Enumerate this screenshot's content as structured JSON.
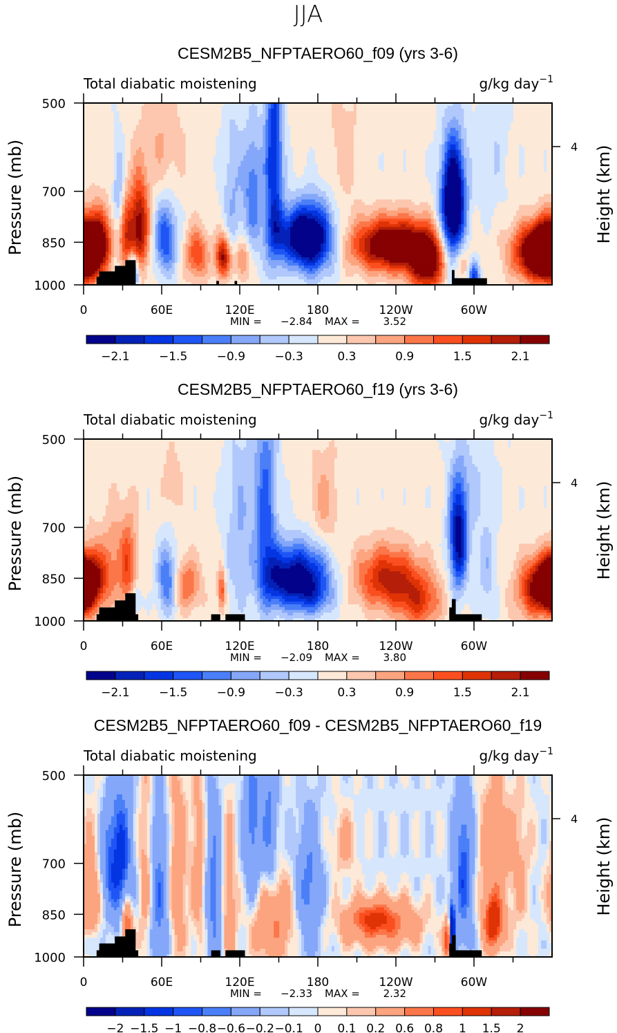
{
  "figure": {
    "main_title": "JJA"
  },
  "colormap": {
    "colors": [
      "#03028a",
      "#0422b8",
      "#0435e2",
      "#1f55f5",
      "#4a7ff8",
      "#85a7f9",
      "#b0c8fb",
      "#d6e7fd",
      "#fde9d7",
      "#fcc7ae",
      "#fca47f",
      "#fb7649",
      "#fb4f1f",
      "#df3306",
      "#b51e08",
      "#860102"
    ]
  },
  "chart_data": [
    {
      "type": "heatmap",
      "title": "CESM2B5_NFPTAERO60_f09 (yrs 3-6)",
      "left_string": "Total diabatic moistening",
      "right_string_base": "g/kg day",
      "right_string_exp": "−1",
      "ylabel": "Pressure (mb)",
      "ylabel_right": "Height (km)",
      "x_ticks": [
        "0",
        "60E",
        "120E",
        "180",
        "120W",
        "60W"
      ],
      "x_range": [
        0,
        360
      ],
      "y_ticks": [
        "500",
        "700",
        "850",
        "1000"
      ],
      "y_tick_values": [
        500,
        700,
        850,
        1000
      ],
      "y_range": [
        500,
        1000
      ],
      "y_right_ticks": [
        "4"
      ],
      "stats": {
        "min_label": "MIN =",
        "min": "−2.84",
        "max_label": "MAX =",
        "max": "3.52"
      },
      "contour_levels": [
        -2.1,
        -1.8,
        -1.5,
        -1.2,
        -0.9,
        -0.6,
        -0.3,
        0,
        0.3,
        0.6,
        0.9,
        1.2,
        1.5,
        1.8,
        2.1
      ],
      "colorbar_labels": [
        "−2.1",
        "−1.5",
        "−0.9",
        "−0.3",
        "0.3",
        "0.9",
        "1.5",
        "2.1"
      ],
      "colorbar_label_every": 2,
      "background_value": 0.1,
      "features": [
        {
          "lon": 0,
          "p": 880,
          "amp": 2.6,
          "wlon": 8,
          "wp": 70
        },
        {
          "lon": 12,
          "p": 840,
          "amp": 1.2,
          "wlon": 6,
          "wp": 80
        },
        {
          "lon": 24,
          "p": 900,
          "amp": -0.5,
          "wlon": 3,
          "wp": 40
        },
        {
          "lon": 27,
          "p": 700,
          "amp": -0.8,
          "wlon": 3,
          "wp": 90
        },
        {
          "lon": 33,
          "p": 830,
          "amp": 1.3,
          "wlon": 4,
          "wp": 90
        },
        {
          "lon": 38,
          "p": 950,
          "amp": -2.2,
          "wlon": 3,
          "wp": 45
        },
        {
          "lon": 43,
          "p": 800,
          "amp": 2.2,
          "wlon": 5,
          "wp": 100
        },
        {
          "lon": 63,
          "p": 840,
          "amp": -1.6,
          "wlon": 6,
          "wp": 80
        },
        {
          "lon": 60,
          "p": 580,
          "amp": 0.5,
          "wlon": 12,
          "wp": 80
        },
        {
          "lon": 87,
          "p": 890,
          "amp": 1.4,
          "wlon": 6,
          "wp": 60
        },
        {
          "lon": 107,
          "p": 900,
          "amp": 2.2,
          "wlon": 4,
          "wp": 50
        },
        {
          "lon": 122,
          "p": 910,
          "amp": 1.1,
          "wlon": 4,
          "wp": 50
        },
        {
          "lon": 115,
          "p": 700,
          "amp": -0.7,
          "wlon": 6,
          "wp": 150
        },
        {
          "lon": 130,
          "p": 700,
          "amp": -1.2,
          "wlon": 5,
          "wp": 120
        },
        {
          "lon": 146,
          "p": 630,
          "amp": -1.9,
          "wlon": 5,
          "wp": 200
        },
        {
          "lon": 176,
          "p": 840,
          "amp": -2.6,
          "wlon": 12,
          "wp": 80
        },
        {
          "lon": 160,
          "p": 830,
          "amp": -1.4,
          "wlon": 12,
          "wp": 60
        },
        {
          "lon": 200,
          "p": 600,
          "amp": 0.4,
          "wlon": 8,
          "wp": 100
        },
        {
          "lon": 238,
          "p": 860,
          "amp": 2.9,
          "wlon": 22,
          "wp": 60
        },
        {
          "lon": 265,
          "p": 930,
          "amp": 2.2,
          "wlon": 10,
          "wp": 70
        },
        {
          "lon": 285,
          "p": 725,
          "amp": -2.9,
          "wlon": 6,
          "wp": 110
        },
        {
          "lon": 280,
          "p": 800,
          "amp": -1.0,
          "wlon": 6,
          "wp": 150
        },
        {
          "lon": 300,
          "p": 970,
          "amp": -1.6,
          "wlon": 3,
          "wp": 40
        },
        {
          "lon": 290,
          "p": 920,
          "amp": 0.5,
          "wlon": 5,
          "wp": 40
        },
        {
          "lon": 312,
          "p": 600,
          "amp": -0.4,
          "wlon": 10,
          "wp": 120
        },
        {
          "lon": 355,
          "p": 870,
          "amp": 2.7,
          "wlon": 16,
          "wp": 60
        },
        {
          "lon": 345,
          "p": 920,
          "amp": 1.0,
          "wlon": 10,
          "wp": 60
        }
      ],
      "topography": [
        [
          10,
          970
        ],
        [
          12,
          970
        ],
        [
          12,
          950
        ],
        [
          24,
          950
        ],
        [
          24,
          930
        ],
        [
          32,
          930
        ],
        [
          32,
          910
        ],
        [
          40,
          910
        ],
        [
          40,
          1000
        ],
        [
          10,
          1000
        ]
      ],
      "topography_extra": [
        [
          [
            102,
            985
          ],
          [
            104,
            985
          ],
          [
            104,
            1000
          ],
          [
            102,
            1000
          ]
        ],
        [
          [
            116,
            985
          ],
          [
            118,
            985
          ],
          [
            118,
            1000
          ],
          [
            116,
            1000
          ]
        ],
        [
          [
            283,
            945
          ],
          [
            285,
            945
          ],
          [
            285,
            975
          ],
          [
            310,
            975
          ],
          [
            310,
            1000
          ],
          [
            283,
            1000
          ]
        ]
      ]
    },
    {
      "type": "heatmap",
      "title": "CESM2B5_NFPTAERO60_f19 (yrs 3-6)",
      "left_string": "Total diabatic moistening",
      "right_string_base": "g/kg day",
      "right_string_exp": "−1",
      "ylabel": "Pressure (mb)",
      "ylabel_right": "Height (km)",
      "x_ticks": [
        "0",
        "60E",
        "120E",
        "180",
        "120W",
        "60W"
      ],
      "x_range": [
        0,
        360
      ],
      "y_ticks": [
        "500",
        "700",
        "850",
        "1000"
      ],
      "y_tick_values": [
        500,
        700,
        850,
        1000
      ],
      "y_range": [
        500,
        1000
      ],
      "y_right_ticks": [
        "4"
      ],
      "stats": {
        "min_label": "MIN =",
        "min": "−2.09",
        "max_label": "MAX =",
        "max": "3.80"
      },
      "contour_levels": [
        -2.1,
        -1.8,
        -1.5,
        -1.2,
        -0.9,
        -0.6,
        -0.3,
        0,
        0.3,
        0.6,
        0.9,
        1.2,
        1.5,
        1.8,
        2.1
      ],
      "colorbar_labels": [
        "−2.1",
        "−1.5",
        "−0.9",
        "−0.3",
        "0.3",
        "0.9",
        "1.5",
        "2.1"
      ],
      "colorbar_label_every": 2,
      "background_value": 0.1,
      "features": [
        {
          "lon": 0,
          "p": 880,
          "amp": 2.3,
          "wlon": 5,
          "wp": 60
        },
        {
          "lon": 10,
          "p": 840,
          "amp": 0.8,
          "wlon": 6,
          "wp": 90
        },
        {
          "lon": 22,
          "p": 780,
          "amp": 0.6,
          "wlon": 5,
          "wp": 100
        },
        {
          "lon": 34,
          "p": 810,
          "amp": 1.3,
          "wlon": 5,
          "wp": 110
        },
        {
          "lon": 40,
          "p": 920,
          "amp": -0.8,
          "wlon": 3,
          "wp": 40
        },
        {
          "lon": 64,
          "p": 855,
          "amp": -1.4,
          "wlon": 5,
          "wp": 80
        },
        {
          "lon": 80,
          "p": 870,
          "amp": 1.1,
          "wlon": 7,
          "wp": 60
        },
        {
          "lon": 68,
          "p": 590,
          "amp": 0.5,
          "wlon": 5,
          "wp": 50
        },
        {
          "lon": 106,
          "p": 890,
          "amp": 1.4,
          "wlon": 2,
          "wp": 50
        },
        {
          "lon": 120,
          "p": 700,
          "amp": -0.7,
          "wlon": 8,
          "wp": 200
        },
        {
          "lon": 140,
          "p": 650,
          "amp": -1.4,
          "wlon": 6,
          "wp": 200
        },
        {
          "lon": 170,
          "p": 850,
          "amp": -2.3,
          "wlon": 14,
          "wp": 75
        },
        {
          "lon": 150,
          "p": 850,
          "amp": -1.3,
          "wlon": 10,
          "wp": 70
        },
        {
          "lon": 178,
          "p": 920,
          "amp": -0.5,
          "wlon": 10,
          "wp": 40
        },
        {
          "lon": 185,
          "p": 640,
          "amp": 0.6,
          "wlon": 8,
          "wp": 90
        },
        {
          "lon": 233,
          "p": 850,
          "amp": 1.8,
          "wlon": 17,
          "wp": 70
        },
        {
          "lon": 258,
          "p": 930,
          "amp": 1.3,
          "wlon": 12,
          "wp": 70
        },
        {
          "lon": 288,
          "p": 730,
          "amp": -2.4,
          "wlon": 5,
          "wp": 110
        },
        {
          "lon": 310,
          "p": 830,
          "amp": -0.6,
          "wlon": 5,
          "wp": 100
        },
        {
          "lon": 300,
          "p": 590,
          "amp": -0.4,
          "wlon": 12,
          "wp": 100
        },
        {
          "lon": 358,
          "p": 860,
          "amp": 2.4,
          "wlon": 12,
          "wp": 60
        },
        {
          "lon": 345,
          "p": 910,
          "amp": 1.0,
          "wlon": 10,
          "wp": 70
        }
      ],
      "topography": [
        [
          10,
          975
        ],
        [
          12,
          975
        ],
        [
          12,
          950
        ],
        [
          24,
          950
        ],
        [
          24,
          925
        ],
        [
          32,
          925
        ],
        [
          32,
          900
        ],
        [
          40,
          900
        ],
        [
          40,
          975
        ],
        [
          42,
          975
        ],
        [
          42,
          1000
        ],
        [
          10,
          1000
        ]
      ],
      "topography_extra": [
        [
          [
            98,
            975
          ],
          [
            105,
            975
          ],
          [
            105,
            1000
          ],
          [
            98,
            1000
          ]
        ],
        [
          [
            109,
            975
          ],
          [
            124,
            975
          ],
          [
            124,
            1000
          ],
          [
            109,
            1000
          ]
        ],
        [
          [
            281,
            950
          ],
          [
            283,
            950
          ],
          [
            283,
            920
          ],
          [
            286,
            920
          ],
          [
            286,
            975
          ],
          [
            306,
            975
          ],
          [
            306,
            1000
          ],
          [
            281,
            1000
          ]
        ]
      ]
    },
    {
      "type": "heatmap",
      "title": "CESM2B5_NFPTAERO60_f09 - CESM2B5_NFPTAERO60_f19",
      "left_string": "Total diabatic moistening",
      "right_string_base": "g/kg day",
      "right_string_exp": "−1",
      "ylabel": "Pressure (mb)",
      "ylabel_right": "Height (km)",
      "x_ticks": [
        "0",
        "60E",
        "120E",
        "180",
        "120W",
        "60W"
      ],
      "x_range": [
        0,
        360
      ],
      "y_ticks": [
        "500",
        "700",
        "850",
        "1000"
      ],
      "y_tick_values": [
        500,
        700,
        850,
        1000
      ],
      "y_range": [
        500,
        1000
      ],
      "y_right_ticks": [
        "4"
      ],
      "stats": {
        "min_label": "MIN =",
        "min": "−2.33",
        "max_label": "MAX =",
        "max": "2.32"
      },
      "contour_levels": [
        -2,
        -1.5,
        -1,
        -0.8,
        -0.6,
        -0.2,
        -0.1,
        0,
        0.1,
        0.2,
        0.6,
        0.8,
        1,
        1.5,
        2
      ],
      "colorbar_labels": [
        "−2",
        "−1.5",
        "−1",
        "−0.8",
        "−0.6",
        "−0.2",
        "−0.1",
        "0",
        "0.1",
        "0.2",
        "0.6",
        "0.8",
        "1",
        "1.5",
        "2"
      ],
      "colorbar_label_every": 1,
      "background_value": -0.05,
      "features": [
        {
          "lon": 5,
          "p": 820,
          "amp": 0.5,
          "wlon": 6,
          "wp": 150
        },
        {
          "lon": 28,
          "p": 690,
          "amp": -1.1,
          "wlon": 6,
          "wp": 130
        },
        {
          "lon": 18,
          "p": 700,
          "amp": -0.5,
          "wlon": 4,
          "wp": 90
        },
        {
          "lon": 33,
          "p": 880,
          "amp": 1.1,
          "wlon": 3,
          "wp": 60
        },
        {
          "lon": 5,
          "p": 950,
          "amp": -0.5,
          "wlon": 4,
          "wp": 40
        },
        {
          "lon": 48,
          "p": 740,
          "amp": 0.4,
          "wlon": 4,
          "wp": 200
        },
        {
          "lon": 58,
          "p": 800,
          "amp": -0.7,
          "wlon": 5,
          "wp": 180
        },
        {
          "lon": 72,
          "p": 720,
          "amp": 0.5,
          "wlon": 5,
          "wp": 200
        },
        {
          "lon": 88,
          "p": 700,
          "amp": 0.4,
          "wlon": 4,
          "wp": 200
        },
        {
          "lon": 100,
          "p": 780,
          "amp": -0.7,
          "wlon": 4,
          "wp": 180
        },
        {
          "lon": 112,
          "p": 820,
          "amp": 0.4,
          "wlon": 4,
          "wp": 200
        },
        {
          "lon": 145,
          "p": 870,
          "amp": 0.7,
          "wlon": 12,
          "wp": 100
        },
        {
          "lon": 130,
          "p": 620,
          "amp": -0.7,
          "wlon": 5,
          "wp": 150
        },
        {
          "lon": 143,
          "p": 600,
          "amp": -0.6,
          "wlon": 4,
          "wp": 150
        },
        {
          "lon": 173,
          "p": 780,
          "amp": -0.7,
          "wlon": 7,
          "wp": 130
        },
        {
          "lon": 200,
          "p": 650,
          "amp": 0.3,
          "wlon": 8,
          "wp": 60
        },
        {
          "lon": 228,
          "p": 880,
          "amp": 0.9,
          "wlon": 20,
          "wp": 55
        },
        {
          "lon": 222,
          "p": 860,
          "amp": 0.4,
          "wlon": 10,
          "wp": 30
        },
        {
          "lon": 283,
          "p": 900,
          "amp": -2.0,
          "wlon": 1.5,
          "wp": 60
        },
        {
          "lon": 280,
          "p": 940,
          "amp": 1.4,
          "wlon": 2,
          "wp": 50
        },
        {
          "lon": 292,
          "p": 720,
          "amp": -0.9,
          "wlon": 5,
          "wp": 150
        },
        {
          "lon": 315,
          "p": 880,
          "amp": 1.3,
          "wlon": 5,
          "wp": 60
        },
        {
          "lon": 315,
          "p": 680,
          "amp": 0.5,
          "wlon": 8,
          "wp": 150
        },
        {
          "lon": 335,
          "p": 700,
          "amp": 0.3,
          "wlon": 6,
          "wp": 150
        }
      ],
      "topography": [
        [
          10,
          975
        ],
        [
          12,
          975
        ],
        [
          12,
          950
        ],
        [
          24,
          950
        ],
        [
          24,
          925
        ],
        [
          32,
          925
        ],
        [
          32,
          900
        ],
        [
          40,
          900
        ],
        [
          40,
          975
        ],
        [
          42,
          975
        ],
        [
          42,
          1000
        ],
        [
          10,
          1000
        ]
      ],
      "topography_extra": [
        [
          [
            98,
            975
          ],
          [
            105,
            975
          ],
          [
            105,
            1000
          ],
          [
            98,
            1000
          ]
        ],
        [
          [
            109,
            975
          ],
          [
            124,
            975
          ],
          [
            124,
            1000
          ],
          [
            109,
            1000
          ]
        ],
        [
          [
            281,
            950
          ],
          [
            283,
            950
          ],
          [
            283,
            920
          ],
          [
            286,
            920
          ],
          [
            286,
            975
          ],
          [
            306,
            975
          ],
          [
            306,
            1000
          ],
          [
            281,
            1000
          ]
        ]
      ]
    }
  ]
}
